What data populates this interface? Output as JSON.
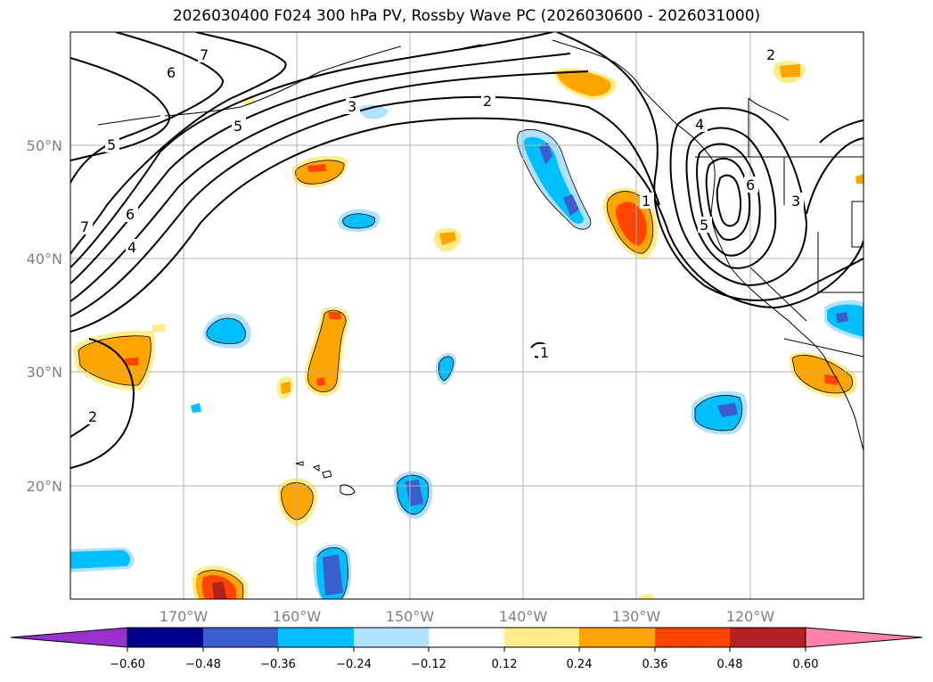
{
  "title": "2026030400 F024 300 hPa PV, Rossby Wave PC (2026030600 - 2026031000)",
  "lat_labels": [
    "50°N",
    "40°N",
    "30°N",
    "20°N"
  ],
  "lon_labels": [
    "170°W",
    "160°W",
    "150°W",
    "140°W",
    "130°W",
    "120°W"
  ],
  "contour_labels": [
    "7",
    "6",
    "5",
    "5",
    "3",
    "2",
    "2",
    "7",
    "6",
    "4",
    "2",
    "1",
    "1",
    "4",
    "6",
    "5",
    "3"
  ],
  "colorbar": {
    "ticks": [
      "−0.60",
      "−0.48",
      "−0.36",
      "−0.24",
      "−0.12",
      "0.12",
      "0.24",
      "0.36",
      "0.48",
      "0.60"
    ],
    "colors": [
      "#9932cc",
      "#00008b",
      "#3a5fcd",
      "#00bfff",
      "#b0e2ff",
      "#ffffff",
      "#ffec8b",
      "#ffa500",
      "#ff4500",
      "#b22222",
      "#ff82ab"
    ]
  }
}
